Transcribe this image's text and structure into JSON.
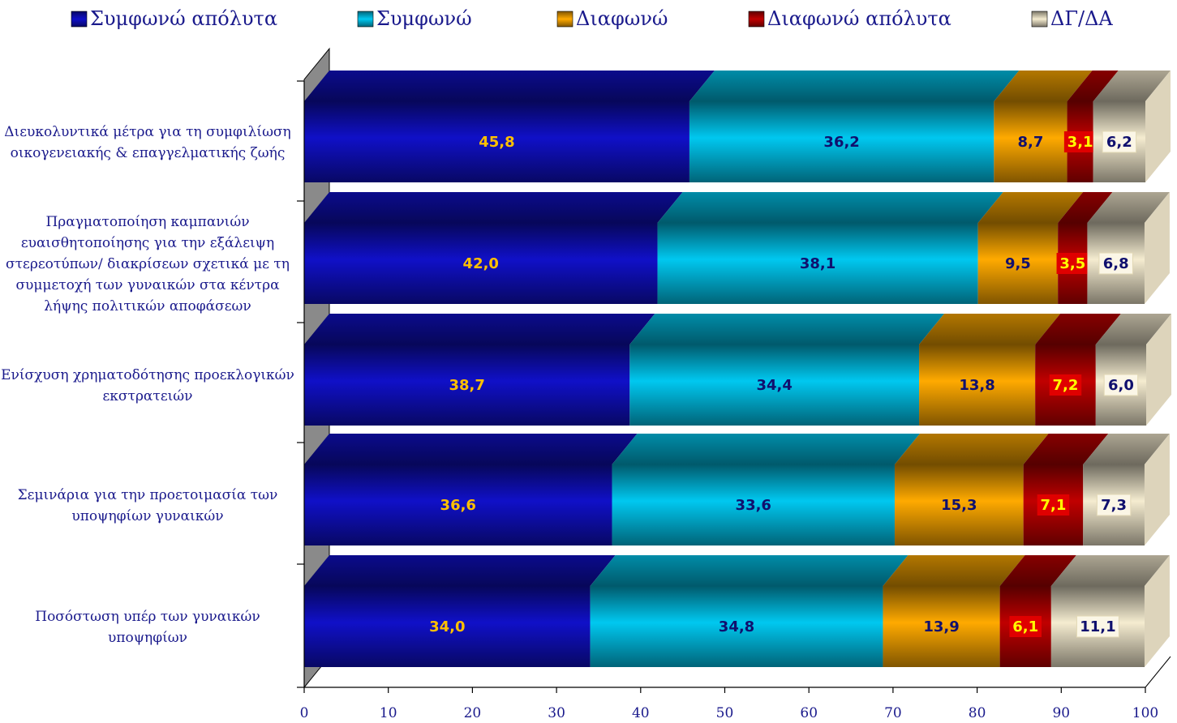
{
  "chart_data": {
    "type": "bar",
    "orientation": "horizontal",
    "stacked": true,
    "three_d": true,
    "categories": [
      [
        "Διευκολυντικά μέτρα για τη συμφιλίωση",
        "οικογενειακής & επαγγελματικής ζωής"
      ],
      [
        "Πραγματοποίηση καμπανιών",
        "ευαισθητοποίησης για την εξάλειψη",
        "στερεοτύπων/ διακρίσεων σχετικά με τη",
        "συμμετοχή των γυναικών στα κέντρα",
        "λήψης πολιτικών αποφάσεων"
      ],
      [
        "Ενίσχυση χρηματοδότησης προεκλογικών",
        "εκστρατειών"
      ],
      [
        "Σεμινάρια για την προετοιμασία των",
        "υποψηφίων γυναικών"
      ],
      [
        "Ποσόστωση υπέρ των γυναικών",
        "υποψηφίων"
      ]
    ],
    "series": [
      {
        "name": "Συμφωνώ απόλυτα",
        "color": "#1010c8",
        "label_color": "#ffc000",
        "values": [
          45.8,
          42.0,
          38.7,
          36.6,
          34.0
        ],
        "labels": [
          "45,8",
          "42,0",
          "38,7",
          "36,6",
          "34,0"
        ]
      },
      {
        "name": "Συμφωνώ",
        "color": "#00c8f0",
        "label_color": "#10106e",
        "values": [
          36.2,
          38.1,
          34.4,
          33.6,
          34.8
        ],
        "labels": [
          "36,2",
          "38,1",
          "34,4",
          "33,6",
          "34,8"
        ]
      },
      {
        "name": "Διαφωνώ",
        "color": "#ffaa00",
        "label_color": "#10106e",
        "values": [
          8.7,
          9.5,
          13.8,
          15.3,
          13.9
        ],
        "labels": [
          "8,7",
          "9,5",
          "13,8",
          "15,3",
          "13,9"
        ]
      },
      {
        "name": "Διαφωνώ απόλυτα",
        "color": "#c00000",
        "label_color": "#ffff00",
        "values": [
          3.1,
          3.5,
          7.2,
          7.1,
          6.1
        ],
        "labels": [
          "3,1",
          "3,5",
          "7,2",
          "7,1",
          "6,1"
        ]
      },
      {
        "name": "ΔΓ/ΔΑ",
        "color": "#f5ecd0",
        "label_color": "#10106e",
        "values": [
          6.2,
          6.8,
          6.0,
          7.3,
          11.1
        ],
        "labels": [
          "6,2",
          "6,8",
          "6,0",
          "7,3",
          "11,1"
        ]
      }
    ],
    "xlim": [
      0,
      100
    ],
    "xticks": [
      0,
      10,
      20,
      30,
      40,
      50,
      60,
      70,
      80,
      90,
      100
    ],
    "legend_position": "top",
    "grid": false
  }
}
